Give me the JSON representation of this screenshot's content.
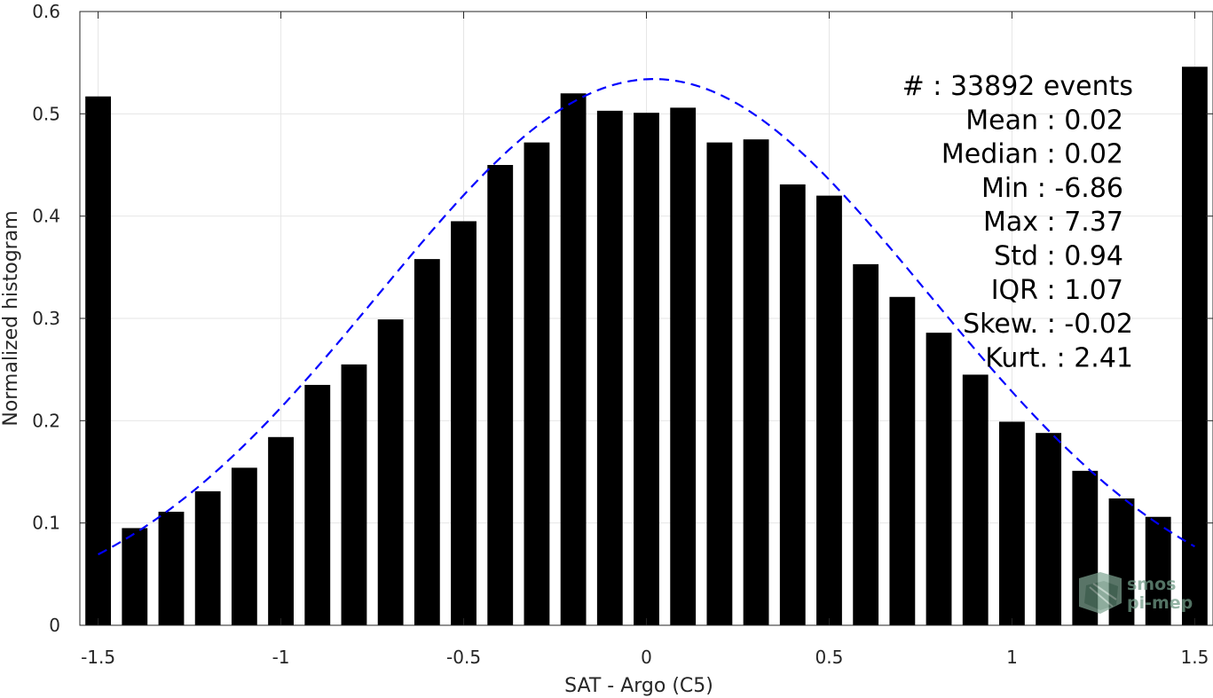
{
  "chart_data": {
    "type": "bar",
    "xlabel": "SAT - Argo (C5)",
    "ylabel": "Normalized histogram",
    "xlim": [
      -1.55,
      1.55
    ],
    "ylim": [
      0,
      0.6
    ],
    "xticks": [
      -1.5,
      -1,
      -0.5,
      0,
      0.5,
      1,
      1.5
    ],
    "xtick_labels": [
      "-1.5",
      "-1",
      "-0.5",
      "0",
      "0.5",
      "1",
      "1.5"
    ],
    "yticks": [
      0,
      0.1,
      0.2,
      0.3,
      0.4,
      0.5,
      0.6
    ],
    "ytick_labels": [
      "0",
      "0.1",
      "0.2",
      "0.3",
      "0.4",
      "0.5",
      "0.6"
    ],
    "grid": true,
    "bar_color": "#000000",
    "bin_width": 0.1,
    "x": [
      -1.5,
      -1.4,
      -1.3,
      -1.2,
      -1.1,
      -1.0,
      -0.9,
      -0.8,
      -0.7,
      -0.6,
      -0.5,
      -0.4,
      -0.3,
      -0.2,
      -0.1,
      0.0,
      0.1,
      0.2,
      0.3,
      0.4,
      0.5,
      0.6,
      0.7,
      0.8,
      0.9,
      1.0,
      1.1,
      1.2,
      1.3,
      1.4,
      1.5
    ],
    "values": [
      0.517,
      0.095,
      0.111,
      0.131,
      0.154,
      0.184,
      0.235,
      0.255,
      0.299,
      0.358,
      0.395,
      0.45,
      0.472,
      0.52,
      0.503,
      0.501,
      0.506,
      0.472,
      0.475,
      0.431,
      0.42,
      0.353,
      0.321,
      0.286,
      0.245,
      0.199,
      0.188,
      0.151,
      0.124,
      0.106,
      0.546
    ],
    "fit": {
      "type": "gaussian",
      "color": "#0000ff",
      "style": "dashed",
      "mean": 0.02,
      "sigma": 0.752,
      "peak": 0.534,
      "x_range": [
        -1.5,
        1.5
      ]
    },
    "stats": [
      "#  : 33892 events",
      "Mean : 0.02",
      "Median : 0.02",
      "Min : -6.86",
      "Max : 7.37",
      "Std : 0.94",
      "IQR : 1.07",
      "Skew. : -0.02",
      "Kurt. : 2.41"
    ]
  },
  "logo": {
    "name": "smos-pi-mep-logo",
    "line1": "smos",
    "line2": "pi-mep",
    "color": "#6f9a86"
  }
}
